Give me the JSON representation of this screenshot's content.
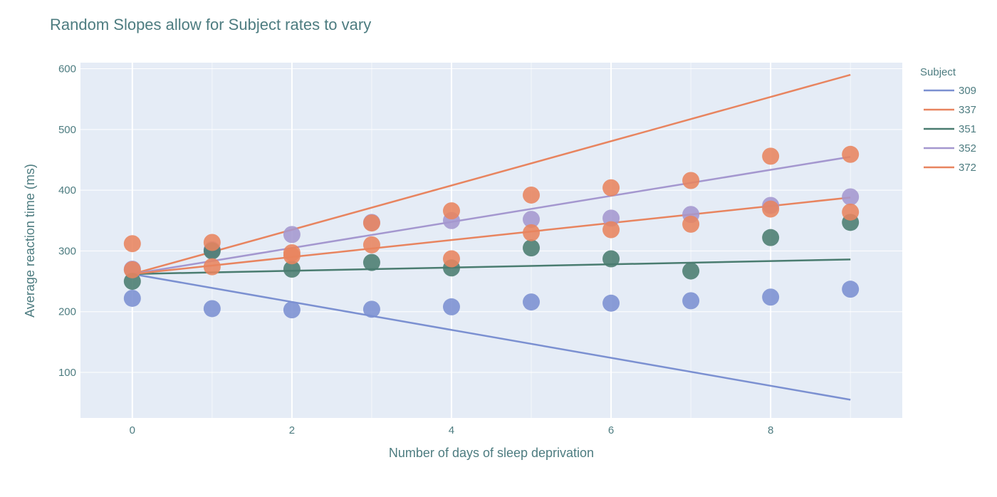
{
  "chart_data": {
    "type": "scatter",
    "title": "Random Slopes allow for Subject rates to vary",
    "xlabel": "Number of days of sleep deprivation",
    "ylabel": "Average reaction time (ms)",
    "xlim": [
      -0.65,
      9.65
    ],
    "ylim": [
      25,
      610
    ],
    "xticks": [
      0,
      2,
      4,
      6,
      8
    ],
    "yticks": [
      100,
      200,
      300,
      400,
      500,
      600
    ],
    "grid": true,
    "legend_title": "Subject",
    "legend_position": "right",
    "series": [
      {
        "name": "309",
        "color": "#7b90d1",
        "fit_line": [
          [
            0,
            262
          ],
          [
            9,
            55
          ]
        ],
        "points": [
          [
            0,
            222
          ],
          [
            1,
            205
          ],
          [
            2,
            203
          ],
          [
            3,
            204
          ],
          [
            4,
            208
          ],
          [
            5,
            216
          ],
          [
            6,
            214
          ],
          [
            7,
            218
          ],
          [
            8,
            224
          ],
          [
            9,
            237
          ]
        ]
      },
      {
        "name": "337",
        "color": "#e8845f",
        "fit_line": [
          [
            0,
            262
          ],
          [
            9,
            590
          ]
        ],
        "points": [
          [
            0,
            312
          ],
          [
            1,
            314
          ],
          [
            2,
            292
          ],
          [
            3,
            346
          ],
          [
            4,
            366
          ],
          [
            5,
            392
          ],
          [
            6,
            404
          ],
          [
            7,
            416
          ],
          [
            8,
            456
          ],
          [
            9,
            459
          ]
        ]
      },
      {
        "name": "351",
        "color": "#4a7c70",
        "fit_line": [
          [
            0,
            262
          ],
          [
            9,
            286
          ]
        ],
        "points": [
          [
            0,
            250
          ],
          [
            1,
            300
          ],
          [
            2,
            270
          ],
          [
            3,
            281
          ],
          [
            4,
            272
          ],
          [
            5,
            305
          ],
          [
            6,
            287
          ],
          [
            7,
            267
          ],
          [
            8,
            322
          ],
          [
            9,
            347
          ]
        ]
      },
      {
        "name": "352",
        "color": "#a497cf",
        "fit_line": [
          [
            0,
            262
          ],
          [
            9,
            455
          ]
        ],
        "points": [
          [
            0,
            270
          ],
          [
            1,
            302
          ],
          [
            2,
            327
          ],
          [
            3,
            347
          ],
          [
            4,
            350
          ],
          [
            5,
            352
          ],
          [
            6,
            354
          ],
          [
            7,
            360
          ],
          [
            8,
            375
          ],
          [
            9,
            389
          ]
        ]
      },
      {
        "name": "372",
        "color": "#e8845f",
        "fit_line": [
          [
            0,
            262
          ],
          [
            9,
            388
          ]
        ],
        "points": [
          [
            0,
            269
          ],
          [
            1,
            274
          ],
          [
            2,
            297
          ],
          [
            3,
            310
          ],
          [
            4,
            287
          ],
          [
            5,
            330
          ],
          [
            6,
            335
          ],
          [
            7,
            344
          ],
          [
            8,
            369
          ],
          [
            9,
            364
          ]
        ]
      }
    ]
  }
}
